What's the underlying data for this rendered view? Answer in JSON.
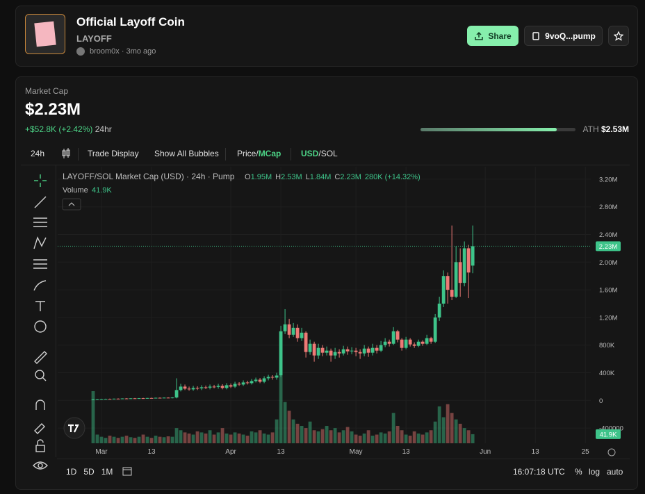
{
  "header": {
    "title": "Official Layoff Coin",
    "ticker": "LAYOFF",
    "creator": "broom0x",
    "separator": "·",
    "age": "3mo ago",
    "share": "Share",
    "address": "9voQ...pump"
  },
  "market": {
    "label": "Market Cap",
    "value": "$2.23M",
    "change": "+$52.8K (+2.42%)",
    "period": "24hr",
    "ath_label": "ATH",
    "ath": "$2.53M"
  },
  "toolbar": {
    "interval": "24h",
    "trade_display": "Trade Display",
    "bubbles": "Show All Bubbles",
    "price": "Price",
    "mcap": "MCap",
    "usd": "USD",
    "sol": "SOL",
    "slash": "/"
  },
  "footer": {
    "ranges": [
      "1D",
      "5D",
      "1M"
    ],
    "time": "16:07:18 UTC",
    "percent": "%",
    "log": "log",
    "auto": "auto"
  },
  "chart_data": {
    "type": "candlestick",
    "title": "LAYOFF/SOL Market Cap (USD) · 24h · Pump",
    "ohlc_legend": [
      {
        "key": "O",
        "value": "1.95M"
      },
      {
        "key": "H",
        "value": "2.53M"
      },
      {
        "key": "L",
        "value": "1.84M"
      },
      {
        "key": "C",
        "value": "2.23M"
      }
    ],
    "change": "280K (+14.32%)",
    "volume_label": "Volume",
    "volume_value": "41.9K",
    "price_tag": "2.23M",
    "volume_tag": "41.9K",
    "up_color": "#3ec48a",
    "down_color": "#ee7a76",
    "x": [
      -2,
      -1,
      0,
      1,
      2,
      3,
      4,
      5,
      6,
      7,
      8,
      9,
      10,
      11,
      12,
      13,
      14,
      15,
      16,
      17,
      18,
      19,
      20,
      21,
      22,
      23,
      24,
      25,
      26,
      27,
      28,
      29,
      30,
      31,
      32,
      33,
      34,
      35,
      36,
      37,
      38,
      39,
      40,
      41,
      42,
      43,
      44,
      45,
      46,
      47,
      48,
      49,
      50,
      51,
      52,
      53,
      54,
      55,
      56,
      57,
      58,
      59,
      60,
      61,
      62,
      63,
      64,
      65,
      66,
      67,
      68,
      69,
      70,
      71,
      72,
      73,
      74,
      75,
      76,
      77,
      78,
      79,
      80,
      81,
      82,
      83,
      84,
      85,
      86,
      87,
      88,
      89
    ],
    "open": [
      10000,
      15000,
      18000,
      20000,
      22000,
      21000,
      25000,
      23000,
      28000,
      26000,
      30000,
      27000,
      32000,
      30000,
      35000,
      33000,
      38000,
      36000,
      40000,
      35000,
      42000,
      150000,
      200000,
      170000,
      160000,
      180000,
      175000,
      190000,
      185000,
      200000,
      195000,
      210000,
      180000,
      220000,
      200000,
      240000,
      230000,
      260000,
      250000,
      280000,
      300000,
      270000,
      320000,
      340000,
      330000,
      360000,
      1000000,
      1100000,
      950000,
      1050000,
      900000,
      980000,
      700000,
      820000,
      650000,
      760000,
      690000,
      720000,
      650000,
      700000,
      680000,
      740000,
      710000,
      720000,
      700000,
      680000,
      750000,
      690000,
      760000,
      720000,
      800000,
      850000,
      820000,
      1000000,
      880000,
      760000,
      880000,
      810000,
      790000,
      850000,
      820000,
      900000,
      850000,
      1200000,
      1400000,
      1800000,
      1600000,
      1500000,
      2000000,
      1700000,
      2200000,
      1950000
    ],
    "high": [
      20000,
      22000,
      24000,
      25000,
      27000,
      27000,
      30000,
      30000,
      33000,
      32000,
      35000,
      34000,
      37000,
      36000,
      40000,
      40000,
      43000,
      42000,
      45000,
      47000,
      320000,
      240000,
      230000,
      200000,
      210000,
      205000,
      220000,
      215000,
      230000,
      225000,
      240000,
      235000,
      250000,
      245000,
      270000,
      265000,
      290000,
      285000,
      310000,
      330000,
      325000,
      350000,
      370000,
      365000,
      400000,
      1080000,
      1320000,
      1180000,
      1120000,
      1100000,
      1050000,
      1000000,
      880000,
      850000,
      820000,
      800000,
      780000,
      750000,
      760000,
      740000,
      790000,
      780000,
      770000,
      760000,
      740000,
      800000,
      780000,
      820000,
      800000,
      860000,
      900000,
      880000,
      1060000,
      1020000,
      900000,
      920000,
      900000,
      840000,
      880000,
      870000,
      950000,
      920000,
      1250000,
      1500000,
      1880000,
      1850000,
      2530000,
      2230000,
      2200000,
      2300000,
      2250000,
      2530000
    ],
    "low": [
      5000,
      12000,
      14000,
      16000,
      18000,
      17000,
      20000,
      19000,
      23000,
      22000,
      25000,
      23000,
      27000,
      26000,
      30000,
      28000,
      33000,
      31000,
      32000,
      30000,
      30000,
      130000,
      150000,
      140000,
      140000,
      150000,
      150000,
      165000,
      160000,
      175000,
      170000,
      160000,
      160000,
      180000,
      180000,
      210000,
      210000,
      230000,
      230000,
      260000,
      250000,
      250000,
      290000,
      300000,
      300000,
      340000,
      960000,
      900000,
      920000,
      850000,
      860000,
      620000,
      660000,
      560000,
      600000,
      640000,
      650000,
      560000,
      600000,
      620000,
      650000,
      660000,
      670000,
      640000,
      600000,
      640000,
      630000,
      650000,
      680000,
      700000,
      770000,
      780000,
      800000,
      840000,
      720000,
      740000,
      780000,
      760000,
      770000,
      790000,
      800000,
      820000,
      830000,
      1150000,
      1350000,
      1400000,
      1450000,
      1480000,
      1500000,
      1650000,
      1480000,
      1840000
    ],
    "close": [
      15000,
      18000,
      20000,
      22000,
      21000,
      25000,
      23000,
      28000,
      26000,
      30000,
      27000,
      32000,
      30000,
      35000,
      33000,
      38000,
      36000,
      40000,
      35000,
      42000,
      150000,
      200000,
      170000,
      160000,
      180000,
      175000,
      190000,
      185000,
      200000,
      195000,
      210000,
      180000,
      220000,
      200000,
      240000,
      230000,
      260000,
      250000,
      280000,
      300000,
      270000,
      320000,
      340000,
      330000,
      360000,
      1000000,
      1100000,
      950000,
      1050000,
      900000,
      980000,
      700000,
      820000,
      650000,
      760000,
      690000,
      720000,
      650000,
      700000,
      680000,
      740000,
      710000,
      720000,
      700000,
      680000,
      750000,
      690000,
      760000,
      720000,
      800000,
      850000,
      820000,
      1000000,
      880000,
      760000,
      880000,
      810000,
      790000,
      850000,
      820000,
      900000,
      850000,
      1200000,
      1400000,
      1800000,
      1600000,
      1500000,
      2000000,
      1700000,
      2200000,
      1850000,
      2230000
    ],
    "volume": [
      240000,
      40000,
      30000,
      25000,
      35000,
      30000,
      25000,
      30000,
      35000,
      28000,
      25000,
      30000,
      40000,
      30000,
      25000,
      35000,
      30000,
      28000,
      32000,
      30000,
      70000,
      60000,
      50000,
      45000,
      40000,
      55000,
      50000,
      45000,
      60000,
      40000,
      50000,
      70000,
      45000,
      40000,
      50000,
      45000,
      40000,
      35000,
      55000,
      50000,
      60000,
      45000,
      40000,
      50000,
      110000,
      310000,
      190000,
      150000,
      110000,
      90000,
      80000,
      70000,
      100000,
      60000,
      55000,
      65000,
      80000,
      60000,
      70000,
      50000,
      60000,
      75000,
      55000,
      40000,
      35000,
      45000,
      60000,
      35000,
      40000,
      50000,
      45000,
      55000,
      140000,
      80000,
      60000,
      40000,
      35000,
      55000,
      45000,
      40000,
      50000,
      60000,
      100000,
      170000,
      120000,
      180000,
      140000,
      110000,
      90000,
      70000,
      60000,
      41900
    ],
    "xlim": [
      -10.5,
      117.3
    ],
    "xticks": [
      {
        "value": 0,
        "label": "Mar"
      },
      {
        "value": 12,
        "label": "13"
      },
      {
        "value": 31,
        "label": "Apr"
      },
      {
        "value": 43,
        "label": "13"
      },
      {
        "value": 61,
        "label": "May"
      },
      {
        "value": 73,
        "label": "13"
      },
      {
        "value": 92,
        "label": "Jun"
      },
      {
        "value": 104,
        "label": "13"
      },
      {
        "value": 116,
        "label": "25"
      }
    ],
    "ylim": [
      -620000,
      3380000
    ],
    "yticks": [
      {
        "value": 3200000,
        "label": "3.20M"
      },
      {
        "value": 2800000,
        "label": "2.80M"
      },
      {
        "value": 2400000,
        "label": "2.40M"
      },
      {
        "value": 2000000,
        "label": "2.00M"
      },
      {
        "value": 1600000,
        "label": "1.60M"
      },
      {
        "value": 1200000,
        "label": "1.20M"
      },
      {
        "value": 800000,
        "label": "800K"
      },
      {
        "value": 400000,
        "label": "400K"
      },
      0,
      -400000
    ],
    "vlim": [
      0,
      320000
    ],
    "grid": true
  }
}
